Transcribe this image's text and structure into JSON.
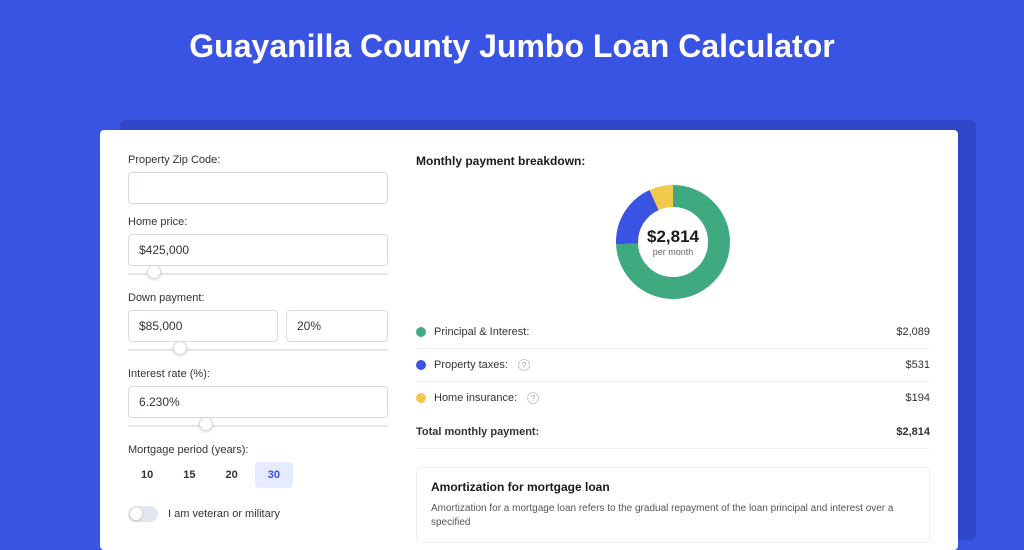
{
  "page": {
    "title": "Guayanilla County Jumbo Loan Calculator",
    "background_color": "#3953e3"
  },
  "form": {
    "zip_label": "Property Zip Code:",
    "zip_value": "",
    "home_price_label": "Home price:",
    "home_price_value": "$425,000",
    "home_price_slider_pct": 10,
    "down_label": "Down payment:",
    "down_amount_value": "$85,000",
    "down_pct_value": "20%",
    "down_slider_pct": 20,
    "rate_label": "Interest rate (%):",
    "rate_value": "6.230%",
    "rate_slider_pct": 30,
    "period_label": "Mortgage period (years):",
    "period_options": [
      "10",
      "15",
      "20",
      "30"
    ],
    "period_selected": "30",
    "veteran_label": "I am veteran or military",
    "veteran_on": false
  },
  "breakdown": {
    "title": "Monthly payment breakdown:",
    "donut": {
      "center_amount": "$2,814",
      "center_label": "per month",
      "radius": 46,
      "stroke_width": 22,
      "slices": [
        {
          "label": "Principal & Interest:",
          "value": "$2,089",
          "numeric": 2089,
          "color": "#3fa97f",
          "has_help": false
        },
        {
          "label": "Property taxes:",
          "value": "$531",
          "numeric": 531,
          "color": "#3953e3",
          "has_help": true
        },
        {
          "label": "Home insurance:",
          "value": "$194",
          "numeric": 194,
          "color": "#f1c94b",
          "has_help": true
        }
      ],
      "total_numeric": 2814,
      "background_color": "#ffffff"
    },
    "total_label": "Total monthly payment:",
    "total_value": "$2,814"
  },
  "amortization": {
    "title": "Amortization for mortgage loan",
    "text": "Amortization for a mortgage loan refers to the gradual repayment of the loan principal and interest over a specified"
  }
}
